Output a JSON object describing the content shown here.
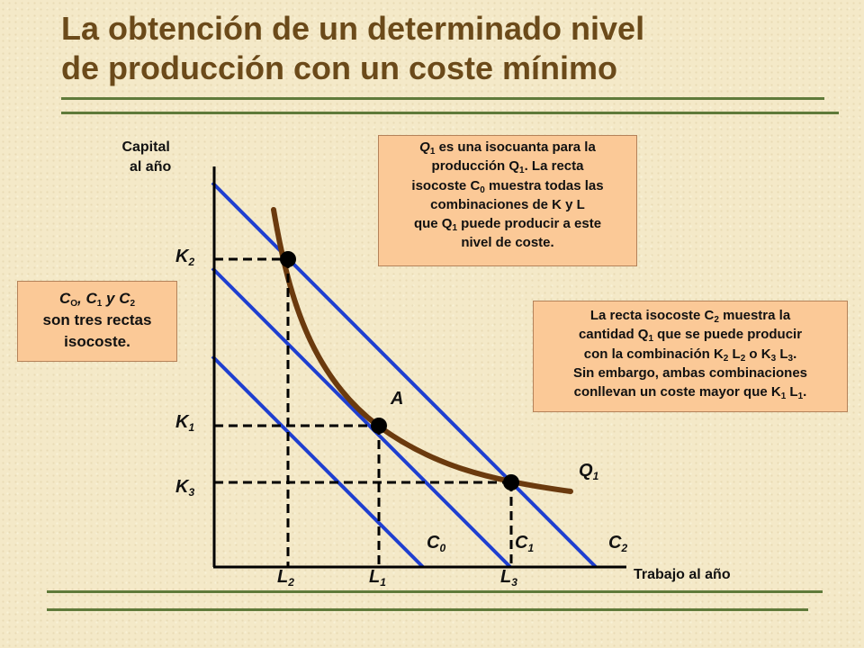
{
  "title_line1": "La obtención de un determinado nivel",
  "title_line2": "de producción con un coste mínimo",
  "axis": {
    "y_line1": "Capital",
    "y_line2": "al año",
    "x": "Trabajo al año"
  },
  "labels": {
    "k2": "K",
    "k2_sub": "2",
    "k1": "K",
    "k1_sub": "1",
    "k3": "K",
    "k3_sub": "3",
    "l2": "L",
    "l2_sub": "2",
    "l1": "L",
    "l1_sub": "1",
    "l3": "L",
    "l3_sub": "3",
    "c0": "C",
    "c0_sub": "0",
    "c1": "C",
    "c1_sub": "1",
    "c2": "C",
    "c2_sub": "2",
    "q1": "Q",
    "q1_sub": "1",
    "a": "A"
  },
  "box_top": {
    "l1_a": "Q",
    "l1_a_sub": "1",
    "l1_b": " es una isocuanta para la",
    "l2_a": "producción Q",
    "l2_a_sub": "1",
    "l2_b": ". La recta",
    "l3_a": "isocoste C",
    "l3_a_sub": "0",
    "l3_b": " muestra todas las",
    "l4": "combinaciones de  K y  L",
    "l5_a": "que Q",
    "l5_a_sub": "1",
    "l5_b": " puede producir a este",
    "l6": "nivel de coste."
  },
  "box_left": {
    "l1_a": "C",
    "l1_a_sub": "O",
    "l1_b": ",  C",
    "l1_b_sub": "1",
    "l1_c": " y C",
    "l1_c_sub": "2",
    "l2": "son tres rectas",
    "l3": "isocoste."
  },
  "box_right": {
    "l1_a": "La recta isocoste C",
    "l1_a_sub": "2",
    "l1_b": " muestra la",
    "l2_a": "cantidad Q",
    "l2_a_sub": "1",
    "l2_b": " que se puede producir",
    "l3_a": "con la combinación K",
    "l3_a_sub": "2",
    "l3_b": " L",
    "l3_b_sub": "2",
    "l3_c": " o K",
    "l3_c_sub": "3",
    "l3_d": " L",
    "l3_d_sub": "3",
    "l3_e": ".",
    "l4": "Sin embargo, ambas combinaciones",
    "l5_a": "conllevan un coste mayor que K",
    "l5_a_sub": "1",
    "l5_b": " L",
    "l5_b_sub": "1",
    "l5_c": "."
  },
  "colors": {
    "isocost": "#1f3fd0",
    "isoquant": "#6b3a0e",
    "box_fill": "#fbc997",
    "title": "#6b4a1a",
    "rule": "#5f7a3a"
  }
}
